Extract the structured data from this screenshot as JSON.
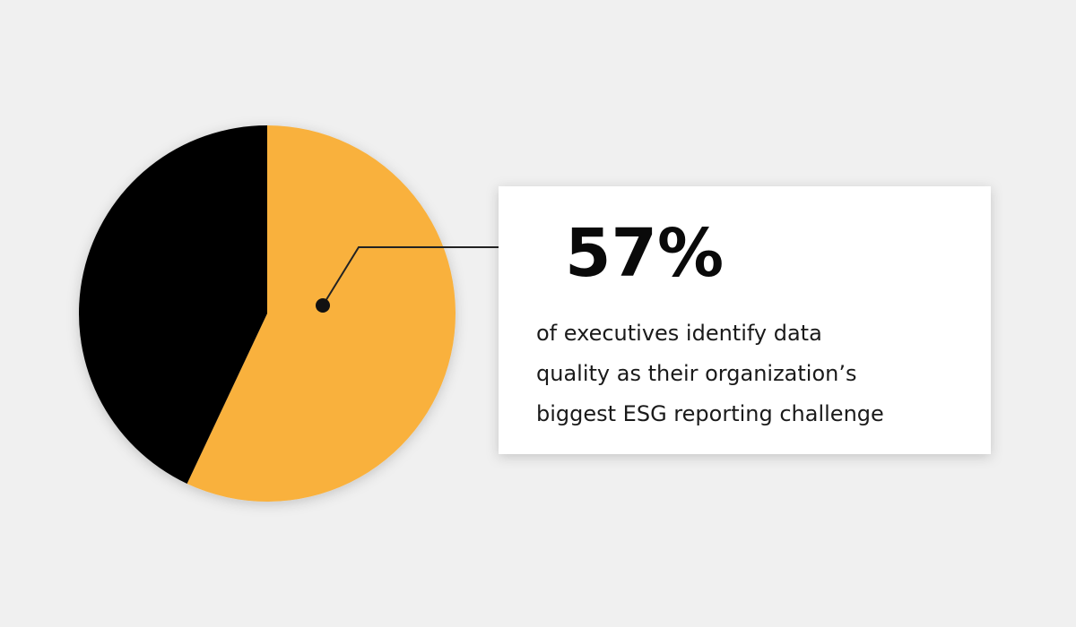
{
  "chart_data": {
    "type": "pie",
    "values": [
      57,
      43
    ],
    "value_labels": [
      "57%",
      null
    ],
    "colors": [
      "#f9b13d",
      "#000000"
    ],
    "description_lines": [
      "of executives identify data",
      "quality as their organization’s",
      "biggest ESG reporting challenge"
    ]
  }
}
